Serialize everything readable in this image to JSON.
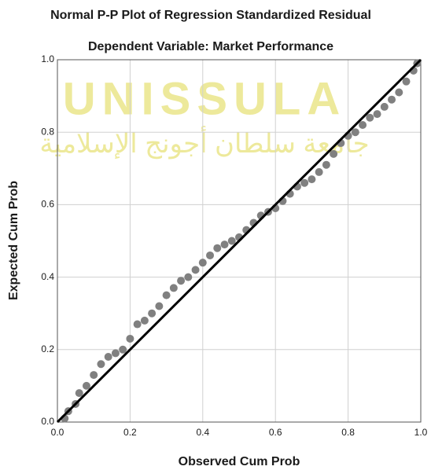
{
  "chart_data": {
    "type": "scatter",
    "title": "Normal P-P Plot of Regression Standardized Residual",
    "subtitle": "Dependent Variable: Market Performance",
    "x_label": "Observed Cum Prob",
    "y_label": "Expected Cum Prob",
    "watermark": "UNISSULA",
    "watermark_subtitle": "جامعة سلطان أجونج الإسلامية",
    "x": [
      0.02,
      0.03,
      0.05,
      0.06,
      0.08,
      0.1,
      0.12,
      0.14,
      0.16,
      0.18,
      0.2,
      0.22,
      0.24,
      0.26,
      0.28,
      0.3,
      0.32,
      0.34,
      0.36,
      0.38,
      0.4,
      0.42,
      0.44,
      0.46,
      0.48,
      0.5,
      0.52,
      0.54,
      0.56,
      0.58,
      0.6,
      0.62,
      0.64,
      0.66,
      0.68,
      0.7,
      0.72,
      0.74,
      0.76,
      0.78,
      0.8,
      0.82,
      0.84,
      0.86,
      0.88,
      0.9,
      0.92,
      0.94,
      0.96,
      0.98,
      0.99
    ],
    "values": [
      0.01,
      0.03,
      0.05,
      0.08,
      0.1,
      0.13,
      0.16,
      0.18,
      0.19,
      0.2,
      0.23,
      0.27,
      0.28,
      0.3,
      0.32,
      0.35,
      0.37,
      0.39,
      0.4,
      0.42,
      0.44,
      0.46,
      0.48,
      0.49,
      0.5,
      0.51,
      0.53,
      0.55,
      0.57,
      0.58,
      0.59,
      0.61,
      0.63,
      0.65,
      0.66,
      0.67,
      0.69,
      0.71,
      0.74,
      0.77,
      0.79,
      0.8,
      0.82,
      0.84,
      0.85,
      0.87,
      0.89,
      0.91,
      0.94,
      0.97,
      0.99
    ],
    "color": "#808080",
    "line_color": "#000000",
    "xlim": [
      0,
      1
    ],
    "ylim": [
      0,
      1
    ],
    "xticks": [
      {
        "value": 0,
        "label": "0.0"
      },
      {
        "value": 0.2,
        "label": "0.2"
      },
      {
        "value": 0.4,
        "label": "0.4"
      },
      {
        "value": 0.6,
        "label": "0.6"
      },
      {
        "value": 0.8,
        "label": "0.8"
      },
      {
        "value": 1,
        "label": "1.0"
      }
    ],
    "yticks": [
      {
        "value": 0,
        "label": "0.0"
      },
      {
        "value": 0.2,
        "label": "0.2"
      },
      {
        "value": 0.4,
        "label": "0.4"
      },
      {
        "value": 0.6,
        "label": "0.6"
      },
      {
        "value": 0.8,
        "label": "0.8"
      },
      {
        "value": 1,
        "label": "1.0"
      }
    ],
    "grid": true
  }
}
